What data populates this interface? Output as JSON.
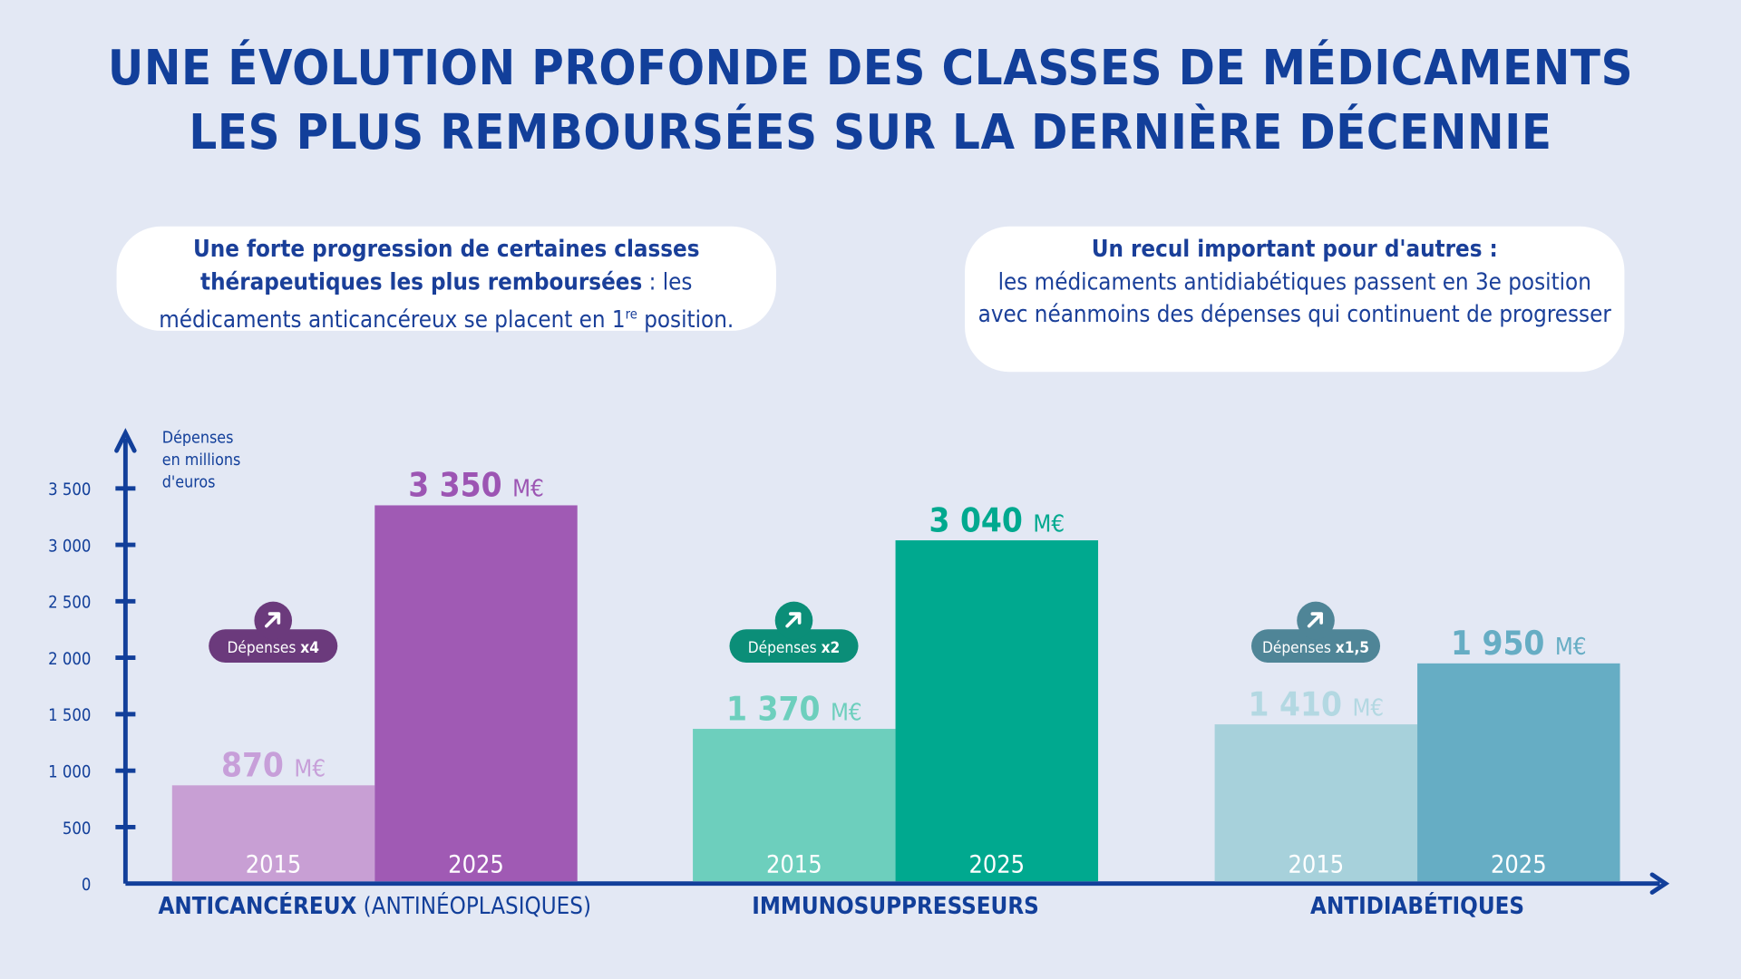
{
  "title_lines": [
    "UNE ÉVOLUTION PROFONDE DES CLASSES DE MÉDICAMENTS",
    "LES PLUS REMBOURSÉES SUR LA DERNIÈRE DÉCENNIE"
  ],
  "callouts": [
    {
      "bold": "Une forte progression de certaines classes thérapeutiques les plus remboursées",
      "text": " : les médicaments anticancéreux se placent en 1",
      "sup": "re",
      "tail": " position."
    },
    {
      "bold": "Un recul important pour d'autres :",
      "text": "les médicaments antidiabétiques passent en 3e position avec néanmoins des dépenses qui continuent de progresser"
    }
  ],
  "chart_data": {
    "type": "bar",
    "ylabel_lines": [
      "Dépenses",
      "en millions",
      "d'euros"
    ],
    "ylim": [
      0,
      3500
    ],
    "yticks": [
      0,
      500,
      1000,
      1500,
      2000,
      2500,
      3000,
      3500
    ],
    "ytick_labels": [
      "0",
      "500",
      "1 000",
      "1 500",
      "2 000",
      "2 500",
      "3 000",
      "3 500"
    ],
    "unit": "M€",
    "groups": [
      {
        "category": "ANTICANCÉREUX",
        "category_suffix": " (ANTINÉOPLASIQUES)",
        "years": [
          "2015",
          "2025"
        ],
        "values": [
          870,
          3350
        ],
        "value_labels": [
          "870",
          "3 350"
        ],
        "badge": {
          "text": "Dépenses ",
          "factor": "x4"
        },
        "colors": {
          "light": "#c89fd4",
          "dark": "#a05ab4",
          "label_light": "#c79fd9",
          "label_dark": "#9c55b3",
          "badge": "#6b3a7c"
        }
      },
      {
        "category": "IMMUNOSUPPRESSEURS",
        "category_suffix": "",
        "years": [
          "2015",
          "2025"
        ],
        "values": [
          1370,
          3040
        ],
        "value_labels": [
          "1 370",
          "3 040"
        ],
        "badge": {
          "text": "Dépenses ",
          "factor": "x2"
        },
        "colors": {
          "light": "#6dcfbd",
          "dark": "#00a98f",
          "label_light": "#6dcfbd",
          "label_dark": "#00a98f",
          "badge": "#0b8e78"
        }
      },
      {
        "category": "ANTIDIABÉTIQUES",
        "category_suffix": "",
        "years": [
          "2015",
          "2025"
        ],
        "values": [
          1410,
          1950
        ],
        "value_labels": [
          "1 410",
          "1 950"
        ],
        "badge": {
          "text": "Dépenses ",
          "factor": "x1,5"
        },
        "colors": {
          "light": "#a7d1db",
          "dark": "#66adc4",
          "label_light": "#b3d8e2",
          "label_dark": "#66adc4",
          "badge": "#4f8597"
        }
      }
    ],
    "axis_color": "#123f9a",
    "background": "#e3e8f4"
  }
}
